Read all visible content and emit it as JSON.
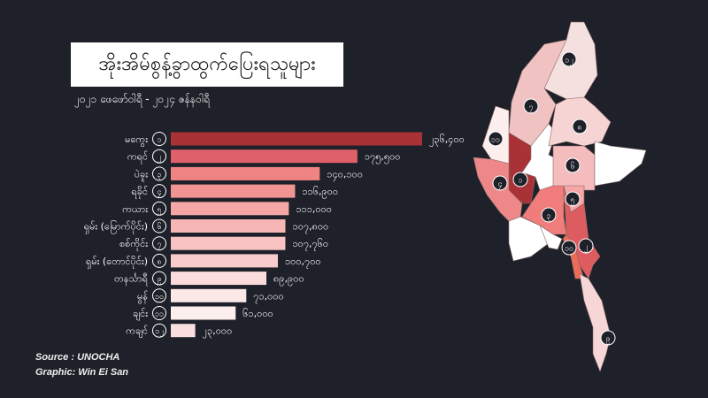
{
  "chart_data": {
    "type": "bar",
    "orientation": "horizontal",
    "title": "အိုးအိမ်စွန့်ခွာထွက်ပြေးရသူများ",
    "subtitle": "၂၀၂၁ ဖေဖော်ဝါရီ - ၂၀၂၄ ဇန်နဝါရီ",
    "categories": [
      "မကွေး",
      "ကရင်",
      "ပဲခူး",
      "ရခိုင်",
      "ကယား",
      "ရှမ်း (မြောက်ပိုင်း)",
      "စစ်ကိုင်း",
      "ရှမ်း (တောင်ပိုင်း)",
      "တနင်္သာရီ",
      "မွန်",
      "ချင်း",
      "ကချင်"
    ],
    "ranks": [
      "၁",
      "၂",
      "၃",
      "၄",
      "၅",
      "၆",
      "၇",
      "၈",
      "၉",
      "၁၀",
      "၁၁",
      "၁၂"
    ],
    "values": [
      236400,
      175500,
      140100,
      116900,
      111000,
      107800,
      107760,
      100700,
      89900,
      71000,
      61000,
      23000
    ],
    "value_labels": [
      "၂၃၆,၄၀၀",
      "၁၇၅,၅၀၀",
      "၁၄၀,၁၀၀",
      "၁၁၆,၉၀၀",
      "၁၁၁,၀၀၀",
      "၁၀၇,၈၀၀",
      "၁၀၇,၇၆၀",
      "၁၀၀,၇၀၀",
      "၈၉,၉၀၀",
      "၇၁,၀၀၀",
      "၆၁,၀၀၀",
      "၂၃,၀၀၀"
    ],
    "colors": [
      "#a83236",
      "#e0606a",
      "#f08484",
      "#f39494",
      "#f5a6a6",
      "#f7b6b6",
      "#f8c2c2",
      "#f9cccc",
      "#fbdcdc",
      "#fde8e8",
      "#fdeeee",
      "#f8dede"
    ],
    "grid": false,
    "legend": "none"
  },
  "source": "Source : UNOCHA",
  "credit": "Graphic: Win Ei San",
  "map": {
    "regions": [
      {
        "rank": "၁၂",
        "color": "#f5e0e0"
      },
      {
        "rank": "၇",
        "color": "#f1c2c2"
      },
      {
        "rank": "၁၁",
        "color": "#fdeeee"
      },
      {
        "rank": "၁",
        "color": "#a83236"
      },
      {
        "rank": "၄",
        "color": "#ee8888"
      },
      {
        "rank": "",
        "color": "#ffffff"
      },
      {
        "rank": "၆",
        "color": "#f7d4d4"
      },
      {
        "rank": "၈",
        "color": "#f4bcbc"
      },
      {
        "rank": "",
        "color": "#ffffff"
      },
      {
        "rank": "၅",
        "color": "#f5a6a6"
      },
      {
        "rank": "၃",
        "color": "#f07c7c"
      },
      {
        "rank": "၂",
        "color": "#dd5c60"
      },
      {
        "rank": "",
        "color": "#ffffff"
      },
      {
        "rank": "",
        "color": "#ffffff"
      },
      {
        "rank": "၁၀",
        "color": "#ec6c58"
      },
      {
        "rank": "၉",
        "color": "#f6d6d6"
      }
    ]
  }
}
